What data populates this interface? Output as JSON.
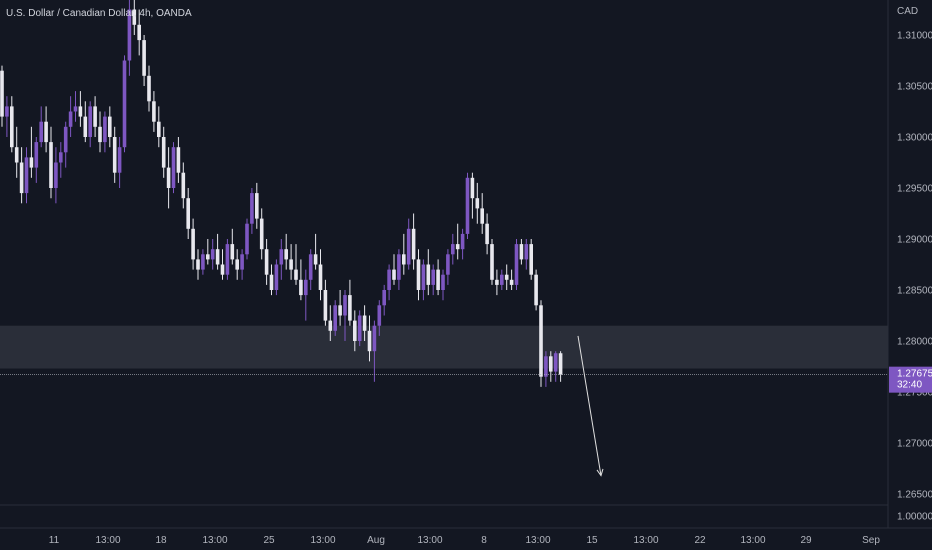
{
  "symbol_title": "U.S. Dollar / Canadian Dollar, 4h, OANDA",
  "currency_label": "CAD",
  "price_axis": {
    "labels": [
      "1.31000",
      "1.30500",
      "1.30000",
      "1.29500",
      "1.29000",
      "1.28500",
      "1.28000",
      "1.27500",
      "1.27000",
      "1.26500",
      "1.00000"
    ]
  },
  "time_axis": {
    "labels": [
      "11",
      "13:00",
      "18",
      "13:00",
      "25",
      "13:00",
      "Aug",
      "13:00",
      "8",
      "13:00",
      "15",
      "13:00",
      "22",
      "13:00",
      "29",
      "Sep"
    ]
  },
  "current_price": {
    "price": "1.27675",
    "countdown": "32:40"
  },
  "zone": {
    "top": 1.2815,
    "bottom": 1.2773
  },
  "projection": {
    "from_price": 1.2805,
    "to_price": 1.2668
  },
  "colors": {
    "background": "#131722",
    "bull_candle": "#7e57c2",
    "bear_candle": "#e8e8ee",
    "price_label_bg": "#7e57c2",
    "zone_fill": "#2a2e39",
    "axis_text": "#b2b5be"
  },
  "chart_data": {
    "type": "candlestick",
    "title": "U.S. Dollar / Canadian Dollar, 4h, OANDA",
    "ylabel": "CAD",
    "ylim": [
      1.2625,
      1.3135
    ],
    "candles": [
      [
        1.3065,
        1.307,
        1.301,
        1.302
      ],
      [
        1.302,
        1.304,
        1.3,
        1.303
      ],
      [
        1.303,
        1.304,
        1.2985,
        1.299
      ],
      [
        1.299,
        1.301,
        1.296,
        1.2975
      ],
      [
        1.2975,
        1.299,
        1.2935,
        1.2945
      ],
      [
        1.2945,
        1.299,
        1.2935,
        1.298
      ],
      [
        1.298,
        1.301,
        1.296,
        1.297
      ],
      [
        1.297,
        1.3,
        1.2955,
        1.2995
      ],
      [
        1.2995,
        1.303,
        1.299,
        1.3015
      ],
      [
        1.3015,
        1.303,
        1.2985,
        1.2995
      ],
      [
        1.2995,
        1.301,
        1.294,
        1.295
      ],
      [
        1.295,
        1.299,
        1.2935,
        1.2975
      ],
      [
        1.2975,
        1.2995,
        1.296,
        1.2985
      ],
      [
        1.2985,
        1.3015,
        1.297,
        1.301
      ],
      [
        1.301,
        1.304,
        1.3,
        1.3025
      ],
      [
        1.3025,
        1.3045,
        1.3015,
        1.303
      ],
      [
        1.303,
        1.3045,
        1.301,
        1.302
      ],
      [
        1.302,
        1.3035,
        1.2995,
        1.3
      ],
      [
        1.3,
        1.3035,
        1.299,
        1.303
      ],
      [
        1.303,
        1.304,
        1.3,
        1.301
      ],
      [
        1.301,
        1.3025,
        1.2985,
        1.2995
      ],
      [
        1.2995,
        1.3025,
        1.2985,
        1.302
      ],
      [
        1.302,
        1.303,
        1.299,
        1.3
      ],
      [
        1.3,
        1.301,
        1.2955,
        1.2965
      ],
      [
        1.2965,
        1.3,
        1.295,
        1.299
      ],
      [
        1.299,
        1.308,
        1.2985,
        1.3075
      ],
      [
        1.3075,
        1.3135,
        1.306,
        1.3125
      ],
      [
        1.3125,
        1.314,
        1.31,
        1.311
      ],
      [
        1.311,
        1.3125,
        1.308,
        1.3095
      ],
      [
        1.3095,
        1.31,
        1.305,
        1.306
      ],
      [
        1.306,
        1.307,
        1.3025,
        1.3035
      ],
      [
        1.3035,
        1.3045,
        1.3005,
        1.3015
      ],
      [
        1.3015,
        1.303,
        1.299,
        1.3
      ],
      [
        1.3,
        1.301,
        1.296,
        1.297
      ],
      [
        1.297,
        1.299,
        1.293,
        1.295
      ],
      [
        1.295,
        1.2995,
        1.2945,
        1.299
      ],
      [
        1.299,
        1.3,
        1.2955,
        1.2965
      ],
      [
        1.2965,
        1.2975,
        1.293,
        1.294
      ],
      [
        1.294,
        1.295,
        1.29,
        1.291
      ],
      [
        1.291,
        1.292,
        1.287,
        1.288
      ],
      [
        1.288,
        1.289,
        1.286,
        1.287
      ],
      [
        1.287,
        1.289,
        1.2865,
        1.2885
      ],
      [
        1.2885,
        1.29,
        1.2875,
        1.288
      ],
      [
        1.288,
        1.29,
        1.287,
        1.289
      ],
      [
        1.289,
        1.2905,
        1.287,
        1.2875
      ],
      [
        1.2875,
        1.289,
        1.286,
        1.2865
      ],
      [
        1.2865,
        1.29,
        1.286,
        1.2895
      ],
      [
        1.2895,
        1.291,
        1.2875,
        1.288
      ],
      [
        1.288,
        1.289,
        1.286,
        1.287
      ],
      [
        1.287,
        1.289,
        1.286,
        1.2885
      ],
      [
        1.2885,
        1.292,
        1.288,
        1.2915
      ],
      [
        1.2915,
        1.295,
        1.2905,
        1.2945
      ],
      [
        1.2945,
        1.2955,
        1.291,
        1.292
      ],
      [
        1.292,
        1.293,
        1.288,
        1.289
      ],
      [
        1.289,
        1.29,
        1.2855,
        1.2865
      ],
      [
        1.2865,
        1.2875,
        1.2845,
        1.285
      ],
      [
        1.285,
        1.288,
        1.2845,
        1.2875
      ],
      [
        1.2875,
        1.29,
        1.286,
        1.289
      ],
      [
        1.289,
        1.2905,
        1.287,
        1.288
      ],
      [
        1.288,
        1.2895,
        1.286,
        1.287
      ],
      [
        1.287,
        1.2895,
        1.2855,
        1.286
      ],
      [
        1.286,
        1.288,
        1.284,
        1.2845
      ],
      [
        1.2845,
        1.287,
        1.282,
        1.286
      ],
      [
        1.286,
        1.289,
        1.285,
        1.2885
      ],
      [
        1.2885,
        1.2905,
        1.287,
        1.2875
      ],
      [
        1.2875,
        1.289,
        1.284,
        1.285
      ],
      [
        1.285,
        1.286,
        1.2815,
        1.282
      ],
      [
        1.282,
        1.2835,
        1.28,
        1.281
      ],
      [
        1.281,
        1.284,
        1.2805,
        1.2835
      ],
      [
        1.2835,
        1.285,
        1.2815,
        1.2825
      ],
      [
        1.2825,
        1.285,
        1.28,
        1.2845
      ],
      [
        1.2845,
        1.286,
        1.2815,
        1.282
      ],
      [
        1.282,
        1.283,
        1.279,
        1.28
      ],
      [
        1.28,
        1.283,
        1.2795,
        1.2825
      ],
      [
        1.2825,
        1.2835,
        1.28,
        1.281
      ],
      [
        1.281,
        1.2825,
        1.278,
        1.279
      ],
      [
        1.279,
        1.282,
        1.276,
        1.2815
      ],
      [
        1.2815,
        1.284,
        1.2805,
        1.2835
      ],
      [
        1.2835,
        1.2855,
        1.2825,
        1.285
      ],
      [
        1.285,
        1.2875,
        1.284,
        1.287
      ],
      [
        1.287,
        1.2885,
        1.2855,
        1.286
      ],
      [
        1.286,
        1.289,
        1.285,
        1.2885
      ],
      [
        1.2885,
        1.2905,
        1.2865,
        1.2875
      ],
      [
        1.2875,
        1.292,
        1.287,
        1.291
      ],
      [
        1.291,
        1.2925,
        1.287,
        1.288
      ],
      [
        1.288,
        1.289,
        1.284,
        1.285
      ],
      [
        1.285,
        1.288,
        1.284,
        1.2875
      ],
      [
        1.2875,
        1.289,
        1.2845,
        1.2855
      ],
      [
        1.2855,
        1.2875,
        1.2845,
        1.287
      ],
      [
        1.287,
        1.288,
        1.2845,
        1.285
      ],
      [
        1.285,
        1.287,
        1.284,
        1.2865
      ],
      [
        1.2865,
        1.289,
        1.2855,
        1.2885
      ],
      [
        1.2885,
        1.2905,
        1.2875,
        1.2895
      ],
      [
        1.2895,
        1.2915,
        1.288,
        1.289
      ],
      [
        1.289,
        1.291,
        1.288,
        1.2905
      ],
      [
        1.2905,
        1.2965,
        1.29,
        1.296
      ],
      [
        1.296,
        1.2965,
        1.292,
        1.294
      ],
      [
        1.294,
        1.2955,
        1.2915,
        1.293
      ],
      [
        1.293,
        1.2945,
        1.2905,
        1.2915
      ],
      [
        1.2915,
        1.2925,
        1.2885,
        1.2895
      ],
      [
        1.2895,
        1.29,
        1.2855,
        1.286
      ],
      [
        1.286,
        1.287,
        1.2845,
        1.2855
      ],
      [
        1.2855,
        1.287,
        1.285,
        1.2865
      ],
      [
        1.2865,
        1.2875,
        1.285,
        1.286
      ],
      [
        1.286,
        1.287,
        1.285,
        1.2855
      ],
      [
        1.2855,
        1.29,
        1.285,
        1.2895
      ],
      [
        1.2895,
        1.29,
        1.2875,
        1.288
      ],
      [
        1.288,
        1.29,
        1.287,
        1.2895
      ],
      [
        1.2895,
        1.29,
        1.286,
        1.2865
      ],
      [
        1.2865,
        1.287,
        1.283,
        1.2835
      ],
      [
        1.2835,
        1.284,
        1.2755,
        1.2765
      ],
      [
        1.2765,
        1.279,
        1.2755,
        1.2785
      ],
      [
        1.2785,
        1.279,
        1.276,
        1.277
      ],
      [
        1.277,
        1.279,
        1.276,
        1.2788
      ],
      [
        1.2788,
        1.279,
        1.276,
        1.2767
      ]
    ]
  }
}
